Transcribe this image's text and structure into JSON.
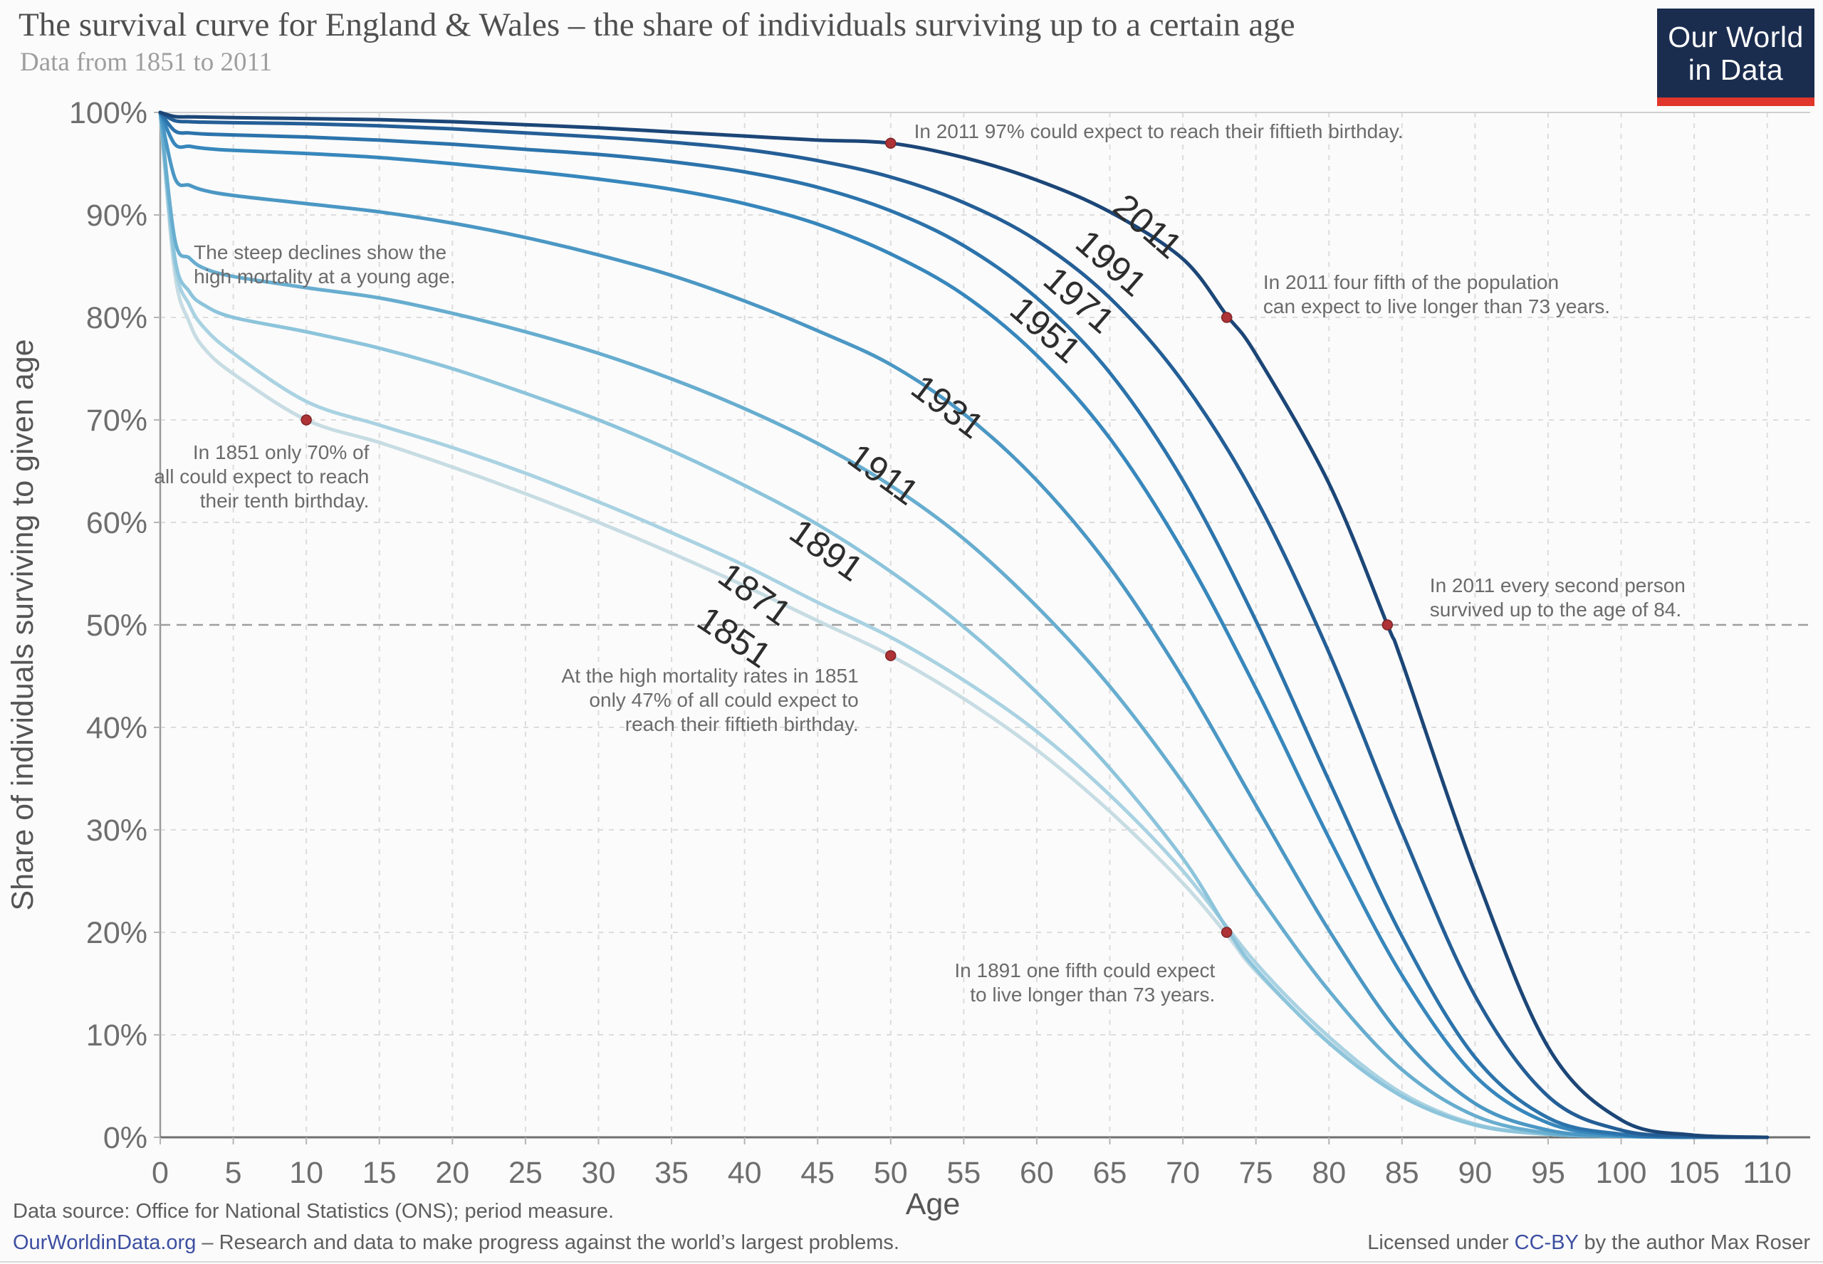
{
  "header": {
    "title": "The survival curve for England & Wales – the share of individuals surviving up to a certain age",
    "subtitle": "Data from 1851 to 2011"
  },
  "logo": {
    "line1": "Our World",
    "line2": "in Data",
    "bg_color": "#1b2d4f",
    "bar_color": "#e0362c"
  },
  "footer": {
    "data_source": "Data source: Office for National Statistics (ONS); period measure.",
    "site_link": "OurWorldinData.org",
    "site_tagline": " – Research and data to make progress against the world’s largest problems.",
    "license_prefix": "Licensed under ",
    "license_link": "CC-BY",
    "license_suffix": " by the author Max Roser",
    "link_color": "#3d4fa1"
  },
  "chart_data": {
    "type": "line",
    "title": "The survival curve for England & Wales – the share of individuals surviving up to a certain age",
    "subtitle": "Data from 1851 to 2011",
    "xlabel": "Age",
    "ylabel": "Share of individuals surviving to given age",
    "xlim": [
      0,
      110
    ],
    "ylim": [
      0,
      100
    ],
    "grid": true,
    "highlight_gridline_pct": 50,
    "x_ticks": [
      0,
      5,
      10,
      15,
      20,
      25,
      30,
      35,
      40,
      45,
      50,
      55,
      60,
      65,
      70,
      75,
      80,
      85,
      90,
      95,
      100,
      105,
      110
    ],
    "y_ticks": [
      0,
      10,
      20,
      30,
      40,
      50,
      60,
      70,
      80,
      90,
      100
    ],
    "y_tick_labels": [
      "0%",
      "10%",
      "20%",
      "30%",
      "40%",
      "50%",
      "60%",
      "70%",
      "80%",
      "90%",
      "100%"
    ],
    "dot_color": "#ae3336",
    "series": [
      {
        "name": "1851",
        "color": "#c7dce3",
        "label": {
          "x": 39.3,
          "y": 48.8,
          "angle": 34
        },
        "points": [
          [
            0,
            100
          ],
          [
            1,
            84.3
          ],
          [
            2,
            79.5
          ],
          [
            3,
            77
          ],
          [
            5,
            74.5
          ],
          [
            10,
            70
          ],
          [
            15,
            67.8
          ],
          [
            20,
            65.4
          ],
          [
            25,
            62.8
          ],
          [
            30,
            60
          ],
          [
            35,
            57
          ],
          [
            40,
            53.8
          ],
          [
            45,
            50.4
          ],
          [
            50,
            47
          ],
          [
            55,
            42.8
          ],
          [
            60,
            37.8
          ],
          [
            65,
            31.8
          ],
          [
            70,
            24.8
          ],
          [
            73,
            19.8
          ],
          [
            75,
            16.2
          ],
          [
            80,
            9.3
          ],
          [
            85,
            4
          ],
          [
            90,
            1.2
          ],
          [
            95,
            0.3
          ],
          [
            100,
            0.1
          ],
          [
            105,
            0
          ],
          [
            110,
            0
          ]
        ]
      },
      {
        "name": "1871",
        "color": "#a9d2e2",
        "label": {
          "x": 40.7,
          "y": 53.0,
          "angle": 36
        },
        "points": [
          [
            0,
            100
          ],
          [
            1,
            85.2
          ],
          [
            2,
            81.2
          ],
          [
            3,
            79
          ],
          [
            5,
            76.5
          ],
          [
            10,
            71.8
          ],
          [
            15,
            69.5
          ],
          [
            20,
            67.3
          ],
          [
            25,
            64.8
          ],
          [
            30,
            62
          ],
          [
            35,
            59
          ],
          [
            40,
            55.8
          ],
          [
            45,
            52.2
          ],
          [
            50,
            48.8
          ],
          [
            55,
            44.6
          ],
          [
            60,
            39.6
          ],
          [
            65,
            33.4
          ],
          [
            70,
            26
          ],
          [
            75,
            17
          ],
          [
            80,
            9.8
          ],
          [
            85,
            4.3
          ],
          [
            90,
            1.3
          ],
          [
            95,
            0.3
          ],
          [
            100,
            0.1
          ],
          [
            105,
            0
          ],
          [
            110,
            0
          ]
        ]
      },
      {
        "name": "1891",
        "color": "#8cc4db",
        "label": {
          "x": 45.6,
          "y": 57.3,
          "angle": 35
        },
        "points": [
          [
            0,
            100
          ],
          [
            1,
            85.8
          ],
          [
            2,
            82.5
          ],
          [
            3,
            81.2
          ],
          [
            5,
            80
          ],
          [
            10,
            78.6
          ],
          [
            15,
            77
          ],
          [
            20,
            75
          ],
          [
            25,
            72.6
          ],
          [
            30,
            70
          ],
          [
            35,
            67
          ],
          [
            40,
            63.6
          ],
          [
            45,
            59.8
          ],
          [
            50,
            55.2
          ],
          [
            55,
            49.8
          ],
          [
            60,
            43.4
          ],
          [
            65,
            36
          ],
          [
            70,
            27.2
          ],
          [
            73,
            20.4
          ],
          [
            75,
            16.4
          ],
          [
            80,
            9.2
          ],
          [
            85,
            4
          ],
          [
            90,
            1.2
          ],
          [
            95,
            0.3
          ],
          [
            100,
            0.1
          ],
          [
            105,
            0
          ],
          [
            110,
            0
          ]
        ]
      },
      {
        "name": "1911",
        "color": "#67adcf",
        "label": {
          "x": 49.5,
          "y": 64.7,
          "angle": 36
        },
        "points": [
          [
            0,
            100
          ],
          [
            1,
            87.6
          ],
          [
            2,
            85.8
          ],
          [
            3,
            84.8
          ],
          [
            5,
            84
          ],
          [
            10,
            82.9
          ],
          [
            15,
            81.9
          ],
          [
            20,
            80.4
          ],
          [
            25,
            78.6
          ],
          [
            30,
            76.5
          ],
          [
            35,
            74
          ],
          [
            40,
            71.1
          ],
          [
            45,
            67.7
          ],
          [
            50,
            63.6
          ],
          [
            55,
            58.4
          ],
          [
            60,
            51.8
          ],
          [
            65,
            44
          ],
          [
            70,
            34.6
          ],
          [
            75,
            24
          ],
          [
            80,
            14.3
          ],
          [
            85,
            6.6
          ],
          [
            90,
            2.1
          ],
          [
            95,
            0.4
          ],
          [
            100,
            0.1
          ],
          [
            105,
            0
          ],
          [
            110,
            0
          ]
        ]
      },
      {
        "name": "1931",
        "color": "#4b97c4",
        "label": {
          "x": 53.9,
          "y": 71.3,
          "angle": 37
        },
        "points": [
          [
            0,
            100
          ],
          [
            1,
            93.6
          ],
          [
            2,
            92.9
          ],
          [
            3,
            92.4
          ],
          [
            5,
            91.9
          ],
          [
            10,
            91.1
          ],
          [
            15,
            90.3
          ],
          [
            20,
            89.2
          ],
          [
            25,
            87.8
          ],
          [
            30,
            86.1
          ],
          [
            35,
            84.1
          ],
          [
            40,
            81.6
          ],
          [
            45,
            78.7
          ],
          [
            50,
            75.4
          ],
          [
            55,
            70.6
          ],
          [
            60,
            64.1
          ],
          [
            65,
            55.6
          ],
          [
            70,
            44.8
          ],
          [
            75,
            32.4
          ],
          [
            80,
            20.2
          ],
          [
            85,
            9.8
          ],
          [
            90,
            3.3
          ],
          [
            95,
            0.7
          ],
          [
            100,
            0.1
          ],
          [
            105,
            0
          ],
          [
            110,
            0
          ]
        ]
      },
      {
        "name": "1951",
        "color": "#3787bc",
        "label": {
          "x": 60.6,
          "y": 78.8,
          "angle": 41
        },
        "points": [
          [
            0,
            100
          ],
          [
            1,
            96.9
          ],
          [
            2,
            96.7
          ],
          [
            3,
            96.5
          ],
          [
            5,
            96.3
          ],
          [
            10,
            96
          ],
          [
            15,
            95.6
          ],
          [
            20,
            95
          ],
          [
            25,
            94.3
          ],
          [
            30,
            93.5
          ],
          [
            35,
            92.5
          ],
          [
            40,
            91.1
          ],
          [
            45,
            89.1
          ],
          [
            50,
            86.2
          ],
          [
            55,
            82.2
          ],
          [
            60,
            76.3
          ],
          [
            65,
            68.2
          ],
          [
            70,
            57.2
          ],
          [
            75,
            43.8
          ],
          [
            80,
            29.2
          ],
          [
            85,
            15.8
          ],
          [
            90,
            6
          ],
          [
            95,
            1.4
          ],
          [
            100,
            0.2
          ],
          [
            105,
            0
          ],
          [
            110,
            0
          ]
        ]
      },
      {
        "name": "1971",
        "color": "#2c73ab",
        "label": {
          "x": 62.9,
          "y": 81.7,
          "angle": 41
        },
        "points": [
          [
            0,
            100
          ],
          [
            1,
            98.2
          ],
          [
            2,
            98
          ],
          [
            3,
            97.9
          ],
          [
            5,
            97.8
          ],
          [
            10,
            97.6
          ],
          [
            15,
            97.3
          ],
          [
            20,
            96.9
          ],
          [
            25,
            96.4
          ],
          [
            30,
            95.9
          ],
          [
            35,
            95.2
          ],
          [
            40,
            94.2
          ],
          [
            45,
            92.7
          ],
          [
            50,
            90.4
          ],
          [
            55,
            87
          ],
          [
            60,
            81.9
          ],
          [
            65,
            74.6
          ],
          [
            70,
            64.1
          ],
          [
            75,
            50.4
          ],
          [
            80,
            34.8
          ],
          [
            85,
            19.6
          ],
          [
            90,
            7.8
          ],
          [
            95,
            1.9
          ],
          [
            100,
            0.3
          ],
          [
            105,
            0
          ],
          [
            110,
            0
          ]
        ]
      },
      {
        "name": "1991",
        "color": "#245e96",
        "label": {
          "x": 65.1,
          "y": 85.3,
          "angle": 41
        },
        "points": [
          [
            0,
            100
          ],
          [
            1,
            99.2
          ],
          [
            2,
            99.1
          ],
          [
            3,
            99.05
          ],
          [
            5,
            99
          ],
          [
            10,
            98.9
          ],
          [
            15,
            98.7
          ],
          [
            20,
            98.4
          ],
          [
            25,
            98
          ],
          [
            30,
            97.6
          ],
          [
            35,
            97.1
          ],
          [
            40,
            96.4
          ],
          [
            45,
            95.3
          ],
          [
            50,
            93.7
          ],
          [
            55,
            91.2
          ],
          [
            60,
            87.5
          ],
          [
            65,
            81.9
          ],
          [
            70,
            73.7
          ],
          [
            75,
            62.3
          ],
          [
            80,
            47.3
          ],
          [
            85,
            29.8
          ],
          [
            90,
            13.8
          ],
          [
            95,
            4
          ],
          [
            100,
            0.7
          ],
          [
            105,
            0.1
          ],
          [
            110,
            0
          ]
        ]
      },
      {
        "name": "2011",
        "color": "#1c4677",
        "label": {
          "x": 67.6,
          "y": 88.9,
          "angle": 41
        },
        "points": [
          [
            0,
            100
          ],
          [
            1,
            99.6
          ],
          [
            2,
            99.57
          ],
          [
            3,
            99.55
          ],
          [
            5,
            99.5
          ],
          [
            10,
            99.4
          ],
          [
            15,
            99.3
          ],
          [
            20,
            99.1
          ],
          [
            25,
            98.8
          ],
          [
            30,
            98.5
          ],
          [
            35,
            98.1
          ],
          [
            40,
            97.7
          ],
          [
            45,
            97.3
          ],
          [
            50,
            97
          ],
          [
            55,
            95.6
          ],
          [
            60,
            93.4
          ],
          [
            65,
            90.3
          ],
          [
            70,
            85.7
          ],
          [
            73,
            80.2
          ],
          [
            75,
            76.4
          ],
          [
            80,
            63.8
          ],
          [
            84,
            50
          ],
          [
            85,
            46.4
          ],
          [
            90,
            25.8
          ],
          [
            95,
            8.8
          ],
          [
            100,
            1.7
          ],
          [
            105,
            0.2
          ],
          [
            110,
            0
          ]
        ]
      }
    ],
    "annotations": [
      {
        "id": "reach-fifty-2011",
        "lines": [
          "In 2011 97% could expect to reach their fiftieth birthday."
        ],
        "x": 51.6,
        "y": 99.3,
        "align": "left",
        "dot": {
          "x": 50,
          "y": 97
        }
      },
      {
        "id": "steep-declines",
        "lines": [
          "The steep declines show the",
          "high mortality at a young age."
        ],
        "x": 2.3,
        "y": 87.5,
        "align": "left",
        "dot": null
      },
      {
        "id": "tenth-birthday-1851",
        "lines": [
          "In 1851 only 70% of",
          "all could expect to reach",
          "their tenth birthday."
        ],
        "x": 14.3,
        "y": 68,
        "align": "right",
        "dot": {
          "x": 10,
          "y": 70
        }
      },
      {
        "id": "fiftieth-birthday-1851",
        "lines": [
          "At the high mortality rates in 1851",
          "only 47% of all could expect to",
          "reach their fiftieth birthday."
        ],
        "x": 47.8,
        "y": 46.2,
        "align": "right",
        "dot": {
          "x": 50,
          "y": 47
        }
      },
      {
        "id": "four-fifth-2011",
        "lines": [
          "In 2011 four fifth of the population",
          "can expect to live longer than 73 years."
        ],
        "x": 75.5,
        "y": 84.6,
        "align": "left",
        "dot": {
          "x": 73,
          "y": 80
        }
      },
      {
        "id": "second-person-2011",
        "lines": [
          "In 2011 every second person",
          "survived up to the age of 84."
        ],
        "x": 86.9,
        "y": 55,
        "align": "left",
        "dot": {
          "x": 84,
          "y": 50
        }
      },
      {
        "id": "one-fifth-1891",
        "lines": [
          "In 1891 one fifth could expect",
          "to live longer than 73 years."
        ],
        "x": 72.2,
        "y": 17.4,
        "align": "right",
        "dot": {
          "x": 73,
          "y": 20
        }
      }
    ]
  }
}
